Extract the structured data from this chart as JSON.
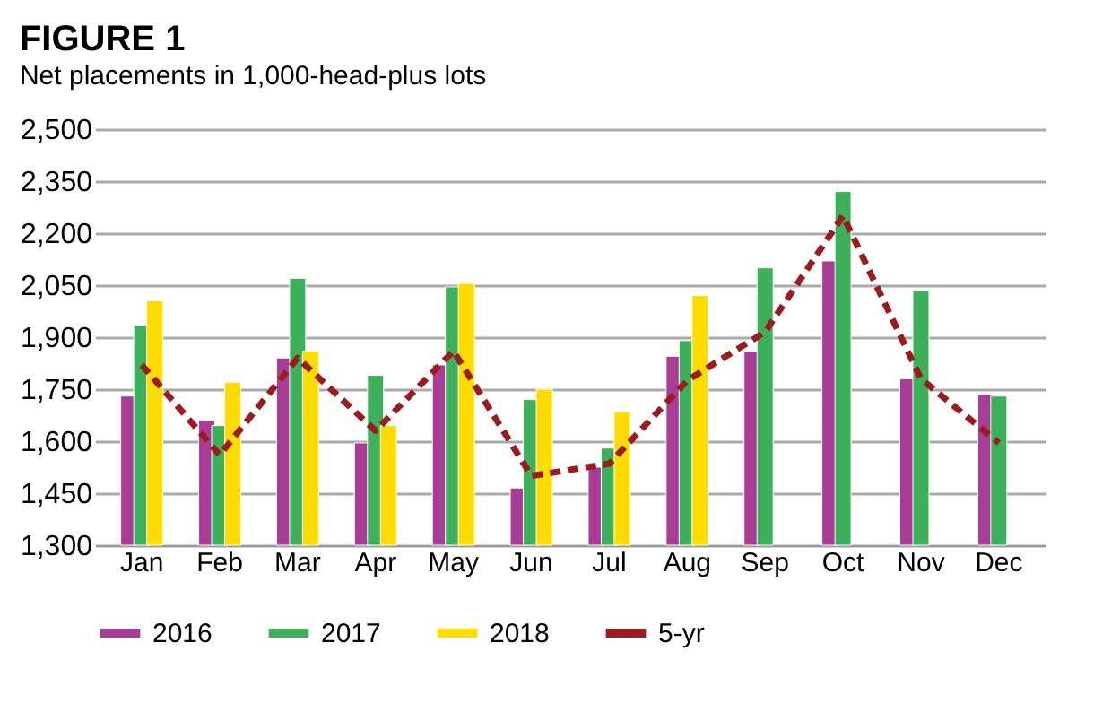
{
  "chart_data": {
    "type": "bar",
    "title": "FIGURE 1",
    "subtitle": "Net placements in 1,000-head-plus lots",
    "categories": [
      "Jan",
      "Feb",
      "Mar",
      "Apr",
      "May",
      "Jun",
      "Jul",
      "Aug",
      "Sep",
      "Oct",
      "Nov",
      "Dec"
    ],
    "series": [
      {
        "name": "2016",
        "color": "#a83c96",
        "values": [
          1730,
          1660,
          1840,
          1595,
          1820,
          1465,
          1525,
          1845,
          1860,
          2120,
          1780,
          1735
        ]
      },
      {
        "name": "2017",
        "color": "#3cb05a",
        "values": [
          1935,
          1645,
          2070,
          1790,
          2045,
          1720,
          1580,
          1890,
          2100,
          2320,
          2035,
          1730
        ]
      },
      {
        "name": "2018",
        "color": "#ffdc00",
        "values": [
          2005,
          1770,
          1860,
          1645,
          2055,
          1750,
          1685,
          2020,
          null,
          null,
          null,
          null
        ]
      },
      {
        "name": "5-yr",
        "color": "#9b1b1e",
        "type": "line",
        "line_style": "dashed",
        "values": [
          1820,
          1560,
          1840,
          1630,
          1860,
          1500,
          1535,
          1775,
          1915,
          2250,
          1780,
          1595
        ]
      }
    ],
    "ylim": [
      1300,
      2500
    ],
    "yticks": [
      {
        "value": 1300,
        "label": "1,300"
      },
      {
        "value": 1450,
        "label": "1,450"
      },
      {
        "value": 1600,
        "label": "1,600"
      },
      {
        "value": 1750,
        "label": "1,750"
      },
      {
        "value": 1900,
        "label": "1,900"
      },
      {
        "value": 2050,
        "label": "2,050"
      },
      {
        "value": 2200,
        "label": "2,200"
      },
      {
        "value": 2350,
        "label": "2,350"
      },
      {
        "value": 2500,
        "label": "2,500"
      }
    ],
    "grid": "y",
    "legend": "bottom"
  }
}
